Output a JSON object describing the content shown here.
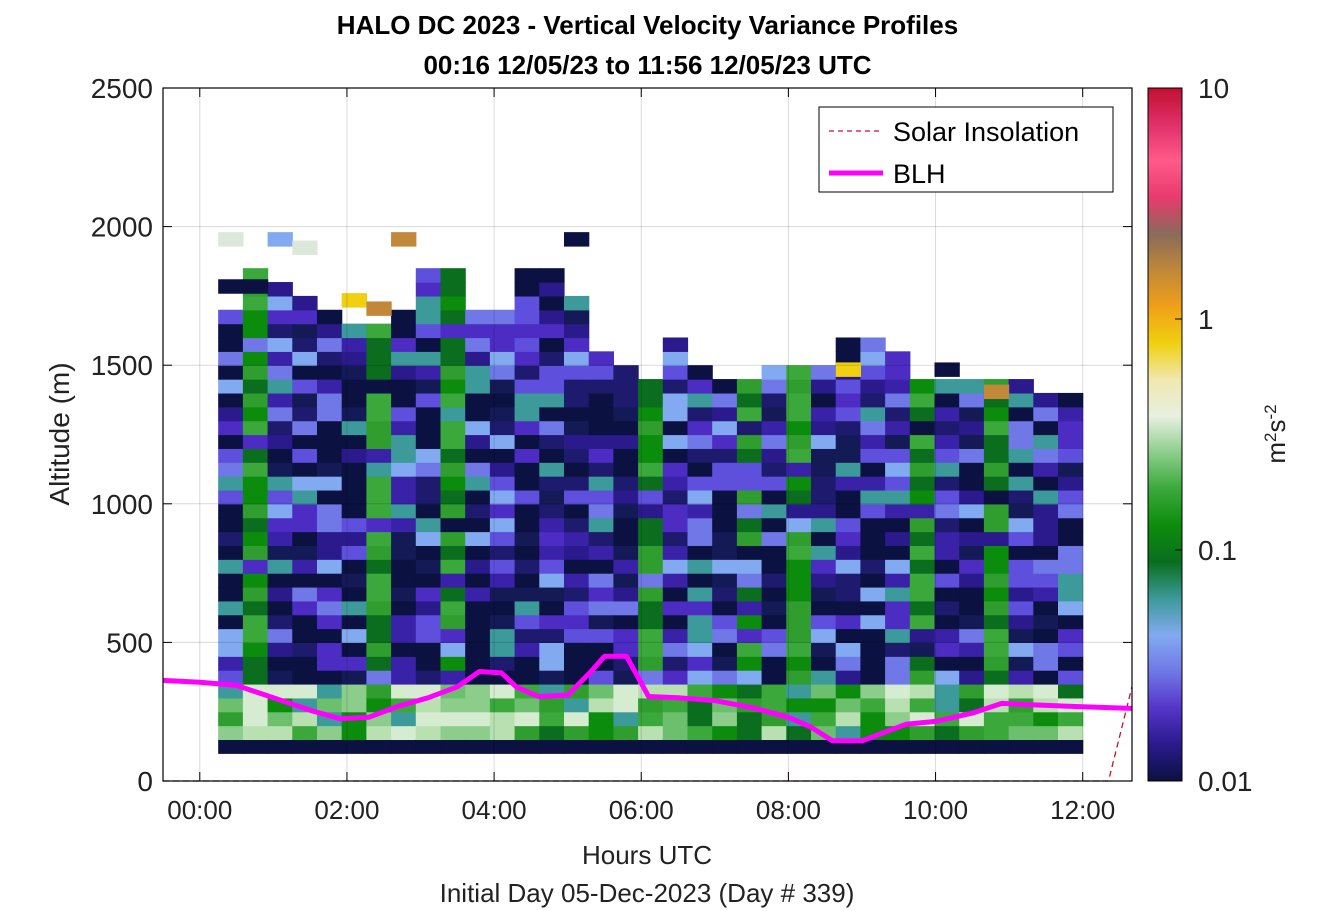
{
  "chart_data": {
    "type": "heatmap",
    "title": "HALO DC 2023 - Vertical Velocity Variance Profiles",
    "subtitle": "00:16 12/05/23 to 11:56 12/05/23  UTC",
    "xlabel": "Hours UTC",
    "xlabel2": "Initial Day 05-Dec-2023 (Day # 339)",
    "ylabel": "Altitude (m)",
    "xlim": [
      -0.5,
      12.67
    ],
    "ylim": [
      0,
      2500
    ],
    "xticks": [
      0,
      2,
      4,
      6,
      8,
      10,
      12
    ],
    "xtick_labels": [
      "00:00",
      "02:00",
      "04:00",
      "06:00",
      "08:00",
      "10:00",
      "12:00"
    ],
    "yticks": [
      0,
      500,
      1000,
      1500,
      2000,
      2500
    ],
    "ytick_labels": [
      "0",
      "500",
      "1000",
      "1500",
      "2000",
      "2500"
    ],
    "grid": true,
    "colorbar": {
      "scale": "log",
      "range": [
        0.01,
        10
      ],
      "ticks": [
        0.01,
        0.1,
        1,
        10
      ],
      "tick_labels": [
        "0.01",
        "0.1",
        "1",
        "10"
      ],
      "label": "m^2s^-2",
      "label_base": "m",
      "label_exp1": "2",
      "label_mid": "s",
      "label_exp2": "-2",
      "colors": [
        "#0b1140",
        "#2a1a8c",
        "#5535c8",
        "#6f78e6",
        "#82aaf0",
        "#3c9a9a",
        "#0a6e1e",
        "#0c8c0c",
        "#3aa83a",
        "#8ccd8c",
        "#e8f0e0",
        "#f0e8b0",
        "#f0d010",
        "#f0a018",
        "#c08838",
        "#8a6a5a",
        "#e83a6e",
        "#ff5a8a",
        "#e0306a",
        "#c01030"
      ]
    },
    "heatmap": {
      "x_start": 0.25,
      "x_end": 12.0,
      "columns": 35,
      "bin_height_m": 50,
      "bottom_m": 100
    },
    "series": [
      {
        "name": "Solar Insolation",
        "color": "#c8102e",
        "style": "dashed",
        "x": [
          -0.5,
          12.2,
          12.35,
          12.67
        ],
        "y": [
          0,
          0,
          0,
          340
        ]
      },
      {
        "name": "BLH",
        "color": "#ff00ff",
        "style": "solid",
        "x": [
          -0.5,
          0.0,
          0.5,
          1.0,
          1.5,
          1.9,
          2.3,
          2.7,
          3.1,
          3.5,
          3.8,
          4.1,
          4.3,
          4.6,
          5.0,
          5.3,
          5.5,
          5.8,
          6.1,
          6.5,
          7.0,
          7.5,
          8.0,
          8.3,
          8.6,
          9.0,
          9.3,
          9.6,
          10.0,
          10.5,
          10.9,
          11.3,
          11.8,
          12.0,
          12.3,
          12.67
        ],
        "y": [
          363,
          356,
          345,
          300,
          255,
          225,
          230,
          270,
          300,
          340,
          395,
          390,
          340,
          305,
          310,
          390,
          450,
          450,
          305,
          300,
          290,
          265,
          230,
          195,
          145,
          145,
          175,
          205,
          215,
          245,
          280,
          275,
          270,
          268,
          265,
          262
        ]
      }
    ],
    "legend": {
      "position": "top-right",
      "entries": [
        "Solar Insolation",
        "BLH"
      ]
    }
  }
}
